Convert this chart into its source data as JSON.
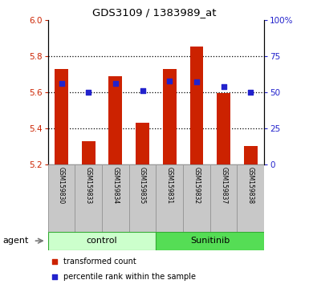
{
  "title": "GDS3109 / 1383989_at",
  "samples": [
    "GSM159830",
    "GSM159833",
    "GSM159834",
    "GSM159835",
    "GSM159831",
    "GSM159832",
    "GSM159837",
    "GSM159838"
  ],
  "red_values": [
    5.73,
    5.33,
    5.69,
    5.43,
    5.73,
    5.855,
    5.595,
    5.305
  ],
  "blue_values": [
    56,
    50,
    56,
    51,
    58,
    57,
    54,
    50
  ],
  "ylim_left": [
    5.2,
    6.0
  ],
  "ylim_right": [
    0,
    100
  ],
  "yticks_left": [
    5.2,
    5.4,
    5.6,
    5.8,
    6.0
  ],
  "yticks_right": [
    0,
    25,
    50,
    75,
    100
  ],
  "ytick_labels_right": [
    "0",
    "25",
    "50",
    "75",
    "100%"
  ],
  "groups": [
    {
      "label": "control",
      "indices": [
        0,
        1,
        2,
        3
      ],
      "color": "#ccffcc"
    },
    {
      "label": "Sunitinib",
      "indices": [
        4,
        5,
        6,
        7
      ],
      "color": "#55dd55"
    }
  ],
  "bar_color": "#cc2200",
  "dot_color": "#2222cc",
  "bar_bottom": 5.2,
  "bg_plot": "#ffffff",
  "tick_label_color_left": "#cc2200",
  "tick_label_color_right": "#2222cc"
}
